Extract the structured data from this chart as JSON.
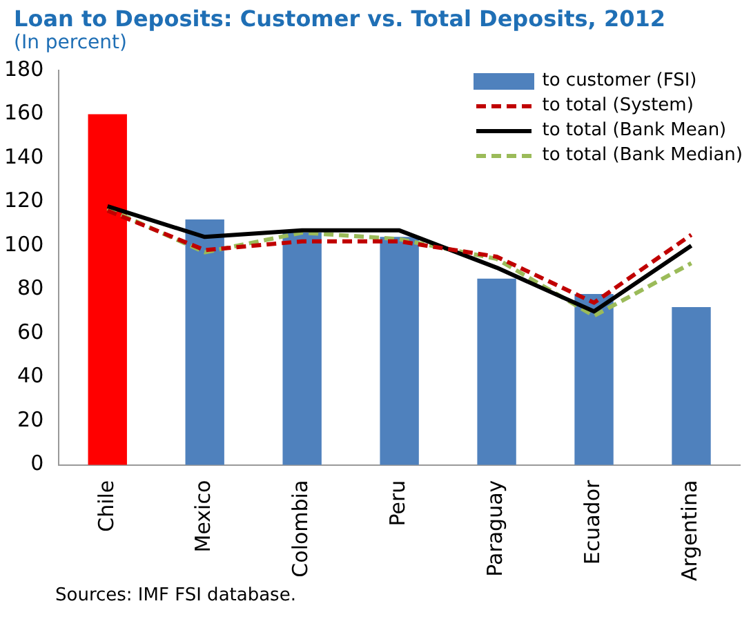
{
  "chart_data": {
    "type": "bar",
    "title": "Loan to Deposits: Customer vs. Total Deposits, 2012",
    "subtitle": "(In percent)",
    "categories": [
      "Chile",
      "Mexico",
      "Colombia",
      "Peru",
      "Paraguay",
      "Ecuador",
      "Argentina"
    ],
    "series": [
      {
        "name": "to customer (FSI)",
        "color": "#4f81bd",
        "colors": [
          "#ff0000",
          "#4f81bd",
          "#4f81bd",
          "#4f81bd",
          "#4f81bd",
          "#4f81bd",
          "#4f81bd"
        ],
        "values": [
          160,
          112,
          106,
          104,
          85,
          78,
          72
        ]
      },
      {
        "name": "to total (System)",
        "type": "line",
        "color": "#c00000",
        "line_style": "dashed",
        "values": [
          116,
          98,
          102,
          102,
          95,
          74,
          105
        ]
      },
      {
        "name": "to total (Bank Mean)",
        "type": "line",
        "color": "#000000",
        "line_style": "solid",
        "values": [
          118,
          104,
          107,
          107,
          90,
          70,
          100
        ]
      },
      {
        "name": "to total (Bank Median)",
        "type": "line",
        "color": "#9bbb59",
        "line_style": "dashed",
        "values": [
          117,
          97,
          106,
          103,
          94,
          68,
          92
        ]
      }
    ],
    "ylim": [
      0,
      180
    ],
    "yticks": [
      0,
      20,
      40,
      60,
      80,
      100,
      120,
      140,
      160,
      180
    ],
    "marker": "none",
    "legend": "top right",
    "annotations": [
      "Sources: IMF FSI database."
    ]
  }
}
